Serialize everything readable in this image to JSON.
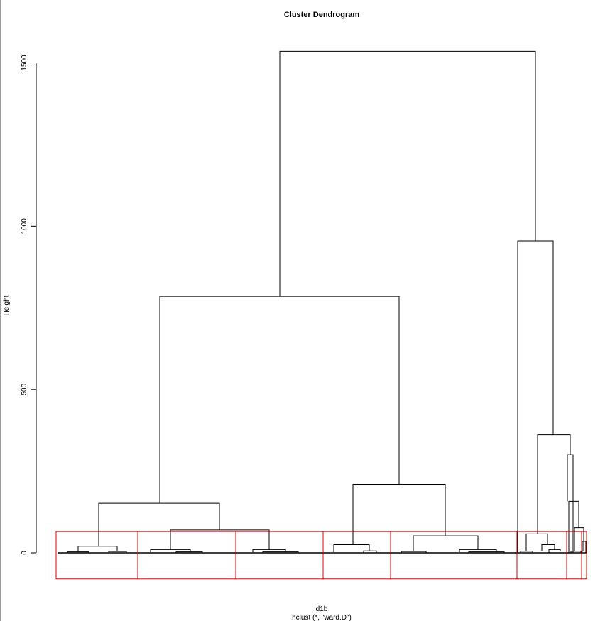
{
  "chart_data": {
    "type": "dendrogram",
    "title": "Cluster Dendrogram",
    "ylabel": "Height",
    "xlabel": "d1b",
    "sublabel": "hclust (*, \"ward.D\")",
    "ylim": [
      0,
      1600
    ],
    "yticks": [
      0,
      500,
      1000,
      1500
    ],
    "colors": {
      "tree": "#000000",
      "cluster_boxes": "#dd0000",
      "axis": "#000000"
    },
    "merges": [
      {
        "left_x": 394,
        "right_x": 754,
        "height": 1535,
        "left_height": 785,
        "right_height": 955
      },
      {
        "left_x": 225,
        "right_x": 562,
        "height": 785,
        "left_height": 152,
        "right_height": 210
      },
      {
        "left_x": 729,
        "right_x": 779,
        "height": 955,
        "left_height": 0,
        "right_height": 362
      },
      {
        "left_x": 139,
        "right_x": 309,
        "height": 152,
        "left_height": 20,
        "right_height": 70
      },
      {
        "left_x": 497,
        "right_x": 627,
        "height": 210,
        "left_height": 25,
        "right_height": 52
      },
      {
        "left_x": 757,
        "right_x": 803,
        "height": 362,
        "left_height": 58,
        "right_height": 300
      },
      {
        "left_x": 799,
        "right_x": 807,
        "height": 300,
        "left_height": 158,
        "right_height": 0
      },
      {
        "left_x": 801,
        "right_x": 815,
        "height": 158,
        "left_height": 0,
        "right_height": 77
      },
      {
        "left_x": 240,
        "right_x": 379,
        "height": 70,
        "left_height": 10,
        "right_height": 10
      },
      {
        "left_x": 582,
        "right_x": 673,
        "height": 52,
        "left_height": 4,
        "right_height": 10
      },
      {
        "left_x": 741,
        "right_x": 771,
        "height": 58,
        "left_height": 5,
        "right_height": 25
      },
      {
        "left_x": 809,
        "right_x": 822,
        "height": 77,
        "left_height": 5,
        "right_height": 5
      },
      {
        "left_x": 110,
        "right_x": 165,
        "height": 20,
        "left_height": 3,
        "right_height": 4
      },
      {
        "left_x": 470,
        "right_x": 520,
        "height": 25,
        "left_height": 2,
        "right_height": 6
      },
      {
        "left_x": 763,
        "right_x": 781,
        "height": 25,
        "left_height": 6,
        "right_height": 10
      },
      {
        "left_x": 820,
        "right_x": 825,
        "height": 35,
        "left_height": 3,
        "right_height": 0
      },
      {
        "left_x": 212,
        "right_x": 268,
        "height": 10,
        "left_height": 2,
        "right_height": 3
      },
      {
        "left_x": 356,
        "right_x": 402,
        "height": 10,
        "left_height": 2,
        "right_height": 3
      },
      {
        "left_x": 647,
        "right_x": 699,
        "height": 10,
        "left_height": 2,
        "right_height": 3
      },
      {
        "left_x": 773,
        "right_x": 789,
        "height": 10,
        "left_height": 0,
        "right_height": 4
      },
      {
        "left_x": 153,
        "right_x": 178,
        "height": 4,
        "left_height": 0,
        "right_height": 0
      },
      {
        "left_x": 733,
        "right_x": 750,
        "height": 5,
        "left_height": 0,
        "right_height": 0
      },
      {
        "left_x": 804,
        "right_x": 818,
        "height": 5,
        "left_height": 0,
        "right_height": 0
      },
      {
        "left_x": 512,
        "right_x": 530,
        "height": 6,
        "left_height": 0,
        "right_height": 0
      },
      {
        "left_x": 95,
        "right_x": 125,
        "height": 3,
        "left_height": 0,
        "right_height": 0
      },
      {
        "left_x": 248,
        "right_x": 285,
        "height": 3,
        "left_height": 0,
        "right_height": 0
      },
      {
        "left_x": 370,
        "right_x": 420,
        "height": 3,
        "left_height": 0,
        "right_height": 0
      },
      {
        "left_x": 565,
        "right_x": 600,
        "height": 4,
        "left_height": 0,
        "right_height": 0
      },
      {
        "left_x": 660,
        "right_x": 710,
        "height": 3,
        "left_height": 0,
        "right_height": 0
      }
    ],
    "cluster_boxes": [
      {
        "x1": 79,
        "x2": 194
      },
      {
        "x1": 194,
        "x2": 332
      },
      {
        "x1": 332,
        "x2": 455
      },
      {
        "x1": 455,
        "x2": 550
      },
      {
        "x1": 550,
        "x2": 728
      },
      {
        "x1": 728,
        "x2": 798
      },
      {
        "x1": 798,
        "x2": 819
      },
      {
        "x1": 819,
        "x2": 826
      }
    ],
    "cluster_box_ylim": [
      -80,
      65
    ],
    "leaf_baseline_range": [
      82,
      826
    ]
  }
}
